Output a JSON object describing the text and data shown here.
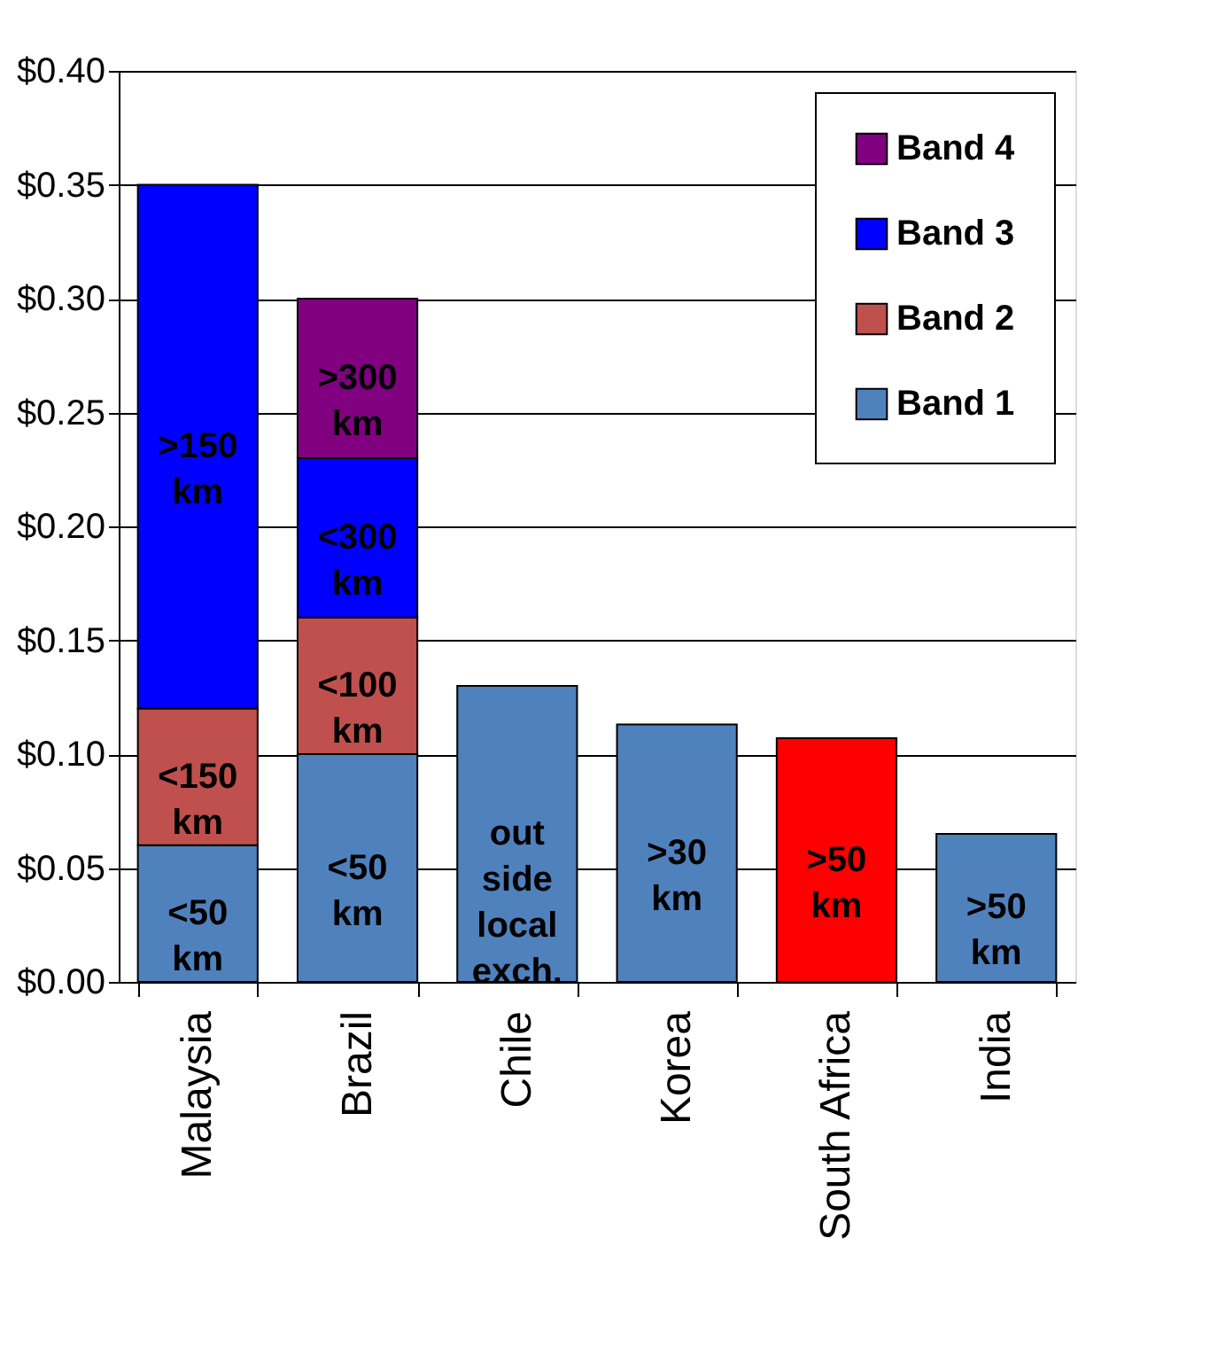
{
  "chart_data": {
    "type": "bar",
    "stacked": true,
    "categories": [
      "Malaysia",
      "Brazil",
      "Chile",
      "Korea",
      "South Africa",
      "India"
    ],
    "series": [
      {
        "name": "Band 1",
        "color": "#4f81bd",
        "colors": [
          "#4f81bd",
          "#4f81bd",
          "#4f81bd",
          "#4f81bd",
          "#ff0000",
          "#4f81bd"
        ],
        "values": [
          0.06,
          0.1,
          0.13,
          0.113,
          0.107,
          0.065
        ]
      },
      {
        "name": "Band 2",
        "color": "#c0504d",
        "values": [
          0.06,
          0.06,
          null,
          null,
          null,
          null
        ]
      },
      {
        "name": "Band 3",
        "color": "#0000ff",
        "values": [
          0.23,
          0.07,
          null,
          null,
          null,
          null
        ]
      },
      {
        "name": "Band 4",
        "color": "#800080",
        "values": [
          null,
          0.07,
          null,
          null,
          null,
          null
        ]
      }
    ],
    "ylim": [
      0,
      0.4
    ],
    "yticks": [
      {
        "value": 0,
        "label": "$0.00"
      },
      {
        "value": 0.05,
        "label": "$0.05"
      },
      {
        "value": 0.1,
        "label": "$0.10"
      },
      {
        "value": 0.15,
        "label": "$0.15"
      },
      {
        "value": 0.2,
        "label": "$0.20"
      },
      {
        "value": 0.25,
        "label": "$0.25"
      },
      {
        "value": 0.3,
        "label": "$0.30"
      },
      {
        "value": 0.35,
        "label": "$0.35"
      },
      {
        "value": 0.4,
        "label": "$0.40"
      }
    ],
    "grid": "y",
    "legend": "top right",
    "annotations": [
      "<50\nkm",
      "<150\nkm",
      ">150\nkm",
      "<50\nkm",
      "<100\nkm",
      "<300\nkm",
      ">300\nkm",
      "out\nside\nlocal\nexch.",
      ">30\nkm",
      ">50\nkm",
      ">50\nkm"
    ]
  }
}
